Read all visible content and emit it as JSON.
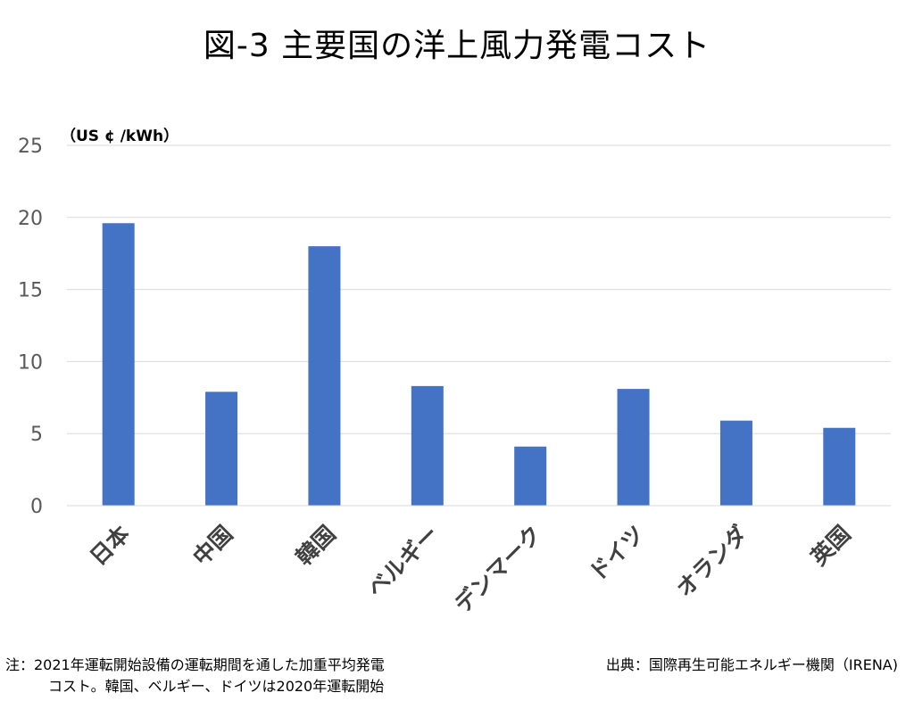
{
  "title": "図-3 主要国の洋上風力発電コスト",
  "unit_label": "（US ¢ /kWh）",
  "note": {
    "line1": "注：2021年運転開始設備の運転期間を通した加重平均発電",
    "line2": "コスト。韓国、ベルギー、ドイツは2020年運転開始"
  },
  "source": "出典：国際再生可能エネルギー機関（IRENA)",
  "colors": {
    "bar": "#4472C4",
    "grid": "#D9D9D9",
    "axis_text": "#595959"
  },
  "chart_data": {
    "type": "bar",
    "title": "図-3 主要国の洋上風力発電コスト",
    "ylabel": "（US ¢ /kWh）",
    "xlabel": "",
    "categories": [
      "日本",
      "中国",
      "韓国",
      "ベルギー",
      "デンマーク",
      "ドイツ",
      "オランダ",
      "英国"
    ],
    "values": [
      19.6,
      7.9,
      18.0,
      8.3,
      4.1,
      8.1,
      5.9,
      5.4
    ],
    "ylim": [
      0,
      25
    ],
    "yticks": [
      0,
      5,
      10,
      15,
      20,
      25
    ],
    "grid": true,
    "legend": "none"
  }
}
